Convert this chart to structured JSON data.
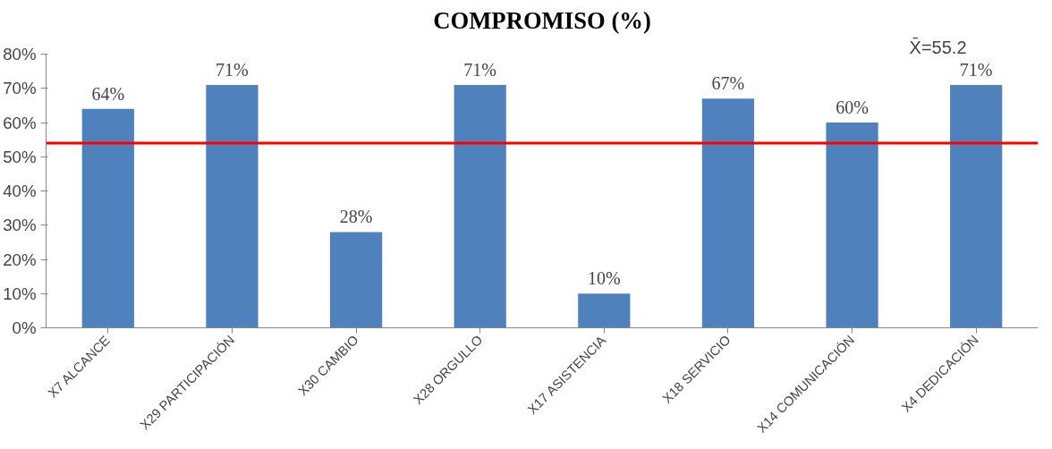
{
  "chart_data": {
    "type": "bar",
    "title": "COMPROMISO (%)",
    "categories": [
      "X7 ALCANCE",
      "X29 PARTICIPACIÓN",
      "X30 CAMBIO",
      "X28 ORGULLO",
      "X17 ASISTENCIA",
      "X18 SERVICIO",
      "X14 COMUNICACIÓN",
      "X4 DEDICACIÓN"
    ],
    "values": [
      64,
      71,
      28,
      71,
      10,
      67,
      60,
      71
    ],
    "value_labels": [
      "64%",
      "71%",
      "28%",
      "71%",
      "10%",
      "67%",
      "60%",
      "71%"
    ],
    "color": "#4f81bd",
    "ylim": [
      0,
      80
    ],
    "yticks": [
      {
        "value": 0,
        "label": "0%"
      },
      {
        "value": 10,
        "label": "10%"
      },
      {
        "value": 20,
        "label": "20%"
      },
      {
        "value": 30,
        "label": "30%"
      },
      {
        "value": 40,
        "label": "40%"
      },
      {
        "value": 50,
        "label": "50%"
      },
      {
        "value": 60,
        "label": "60%"
      },
      {
        "value": 70,
        "label": "70%"
      },
      {
        "value": 80,
        "label": "80%"
      }
    ],
    "ref_lines": [
      {
        "axis": "y",
        "value": 54,
        "color": "#ff0000"
      }
    ],
    "annotations": [
      "X̄=55.2"
    ],
    "grid": false
  }
}
